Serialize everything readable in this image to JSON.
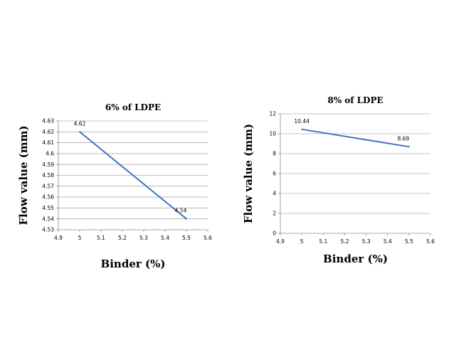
{
  "chart_data": [
    {
      "type": "line",
      "title": "6% of LDPE",
      "xlabel": "Binder (%)",
      "ylabel": "Flow value (mm)",
      "xlim": [
        4.9,
        5.6
      ],
      "ylim": [
        4.53,
        4.63
      ],
      "x_ticks": [
        "4.9",
        "5",
        "5.1",
        "5.2",
        "5.3",
        "5.4",
        "5.5",
        "5.6"
      ],
      "y_ticks": [
        "4.53",
        "4.54",
        "4.55",
        "4.56",
        "4.57",
        "4.58",
        "4.59",
        "4.6",
        "4.61",
        "4.62",
        "4.63"
      ],
      "grid": true,
      "legend": "none",
      "series": [
        {
          "x": [
            5,
            5.5
          ],
          "values": [
            4.62,
            4.54
          ],
          "labels": [
            "4.62",
            "4.54"
          ],
          "color": "#4472c4"
        }
      ]
    },
    {
      "type": "line",
      "title": "8% of LDPE",
      "xlabel": "Binder (%)",
      "ylabel": "Flow value (mm)",
      "xlim": [
        4.9,
        5.6
      ],
      "ylim": [
        0,
        12
      ],
      "x_ticks": [
        "4.9",
        "5",
        "5.1",
        "5.2",
        "5.3",
        "5.4",
        "5.5",
        "5.6"
      ],
      "y_ticks": [
        "0",
        "2",
        "4",
        "6",
        "8",
        "10",
        "12"
      ],
      "grid": true,
      "legend": "none",
      "series": [
        {
          "x": [
            5,
            5.5
          ],
          "values": [
            10.44,
            8.69
          ],
          "labels": [
            "10.44",
            "8.69"
          ],
          "color": "#4472c4"
        }
      ]
    }
  ]
}
